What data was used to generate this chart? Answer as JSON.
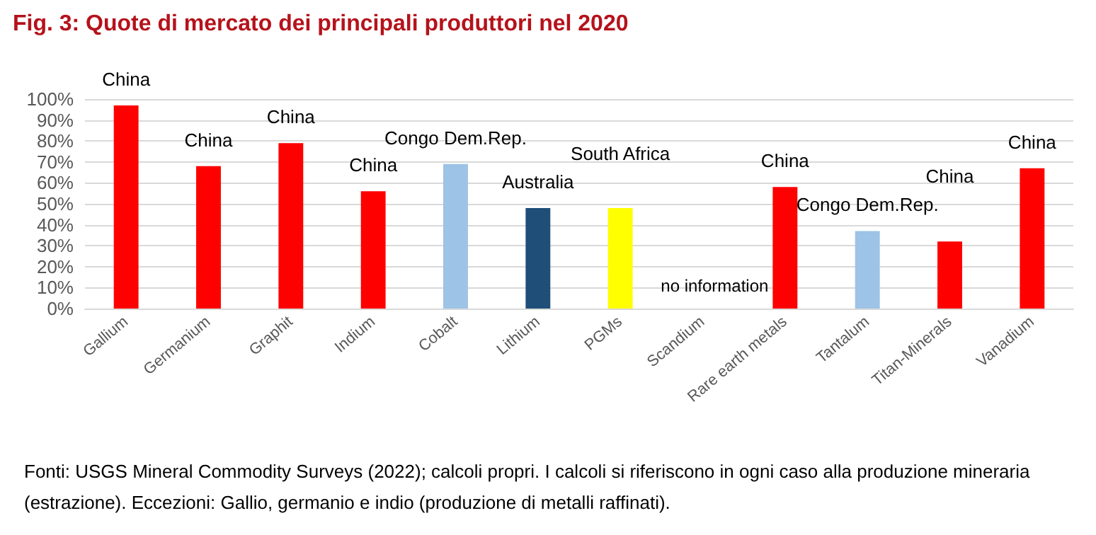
{
  "chart_data": {
    "type": "bar",
    "title": "Fig. 3: Quote di mercato dei principali produttori nel 2020",
    "categories": [
      "Gallium",
      "Germanium",
      "Graphit",
      "Indium",
      "Cobalt",
      "Lithium",
      "PGMs",
      "Scandium",
      "Rare earth metals",
      "Tantalum",
      "Titan-Minerals",
      "Vanadium"
    ],
    "values": [
      97,
      68,
      79,
      56,
      69,
      48,
      48,
      null,
      58,
      37,
      32,
      67
    ],
    "colors": [
      "#ff0000",
      "#ff0000",
      "#ff0000",
      "#ff0000",
      "#9dc3e6",
      "#1f4e79",
      "#ffff00",
      null,
      "#ff0000",
      "#9dc3e6",
      "#ff0000",
      "#ff0000"
    ],
    "value_labels": [
      "China",
      "China",
      "China",
      "China",
      "Congo Dem.Rep.",
      "Australia",
      "South Africa",
      null,
      "China",
      "Congo Dem.Rep.",
      "China",
      "China"
    ],
    "ylim": [
      0,
      100
    ],
    "yticks": [
      {
        "value": 0,
        "label": "0%"
      },
      {
        "value": 10,
        "label": "10%"
      },
      {
        "value": 20,
        "label": "20%"
      },
      {
        "value": 30,
        "label": "30%"
      },
      {
        "value": 40,
        "label": "40%"
      },
      {
        "value": 50,
        "label": "50%"
      },
      {
        "value": 60,
        "label": "60%"
      },
      {
        "value": 70,
        "label": "70%"
      },
      {
        "value": 80,
        "label": "80%"
      },
      {
        "value": 90,
        "label": "90%"
      },
      {
        "value": 100,
        "label": "100%"
      }
    ],
    "grid": "y",
    "annotations": [
      "no information",
      "Fonti: USGS Mineral Commodity Surveys (2022); calcoli propri. I calcoli si riferiscono in ogni caso alla produzione mineraria (estrazione). Eccezioni: Gallio, germanio e indio (produzione di metalli raffinati)."
    ]
  }
}
